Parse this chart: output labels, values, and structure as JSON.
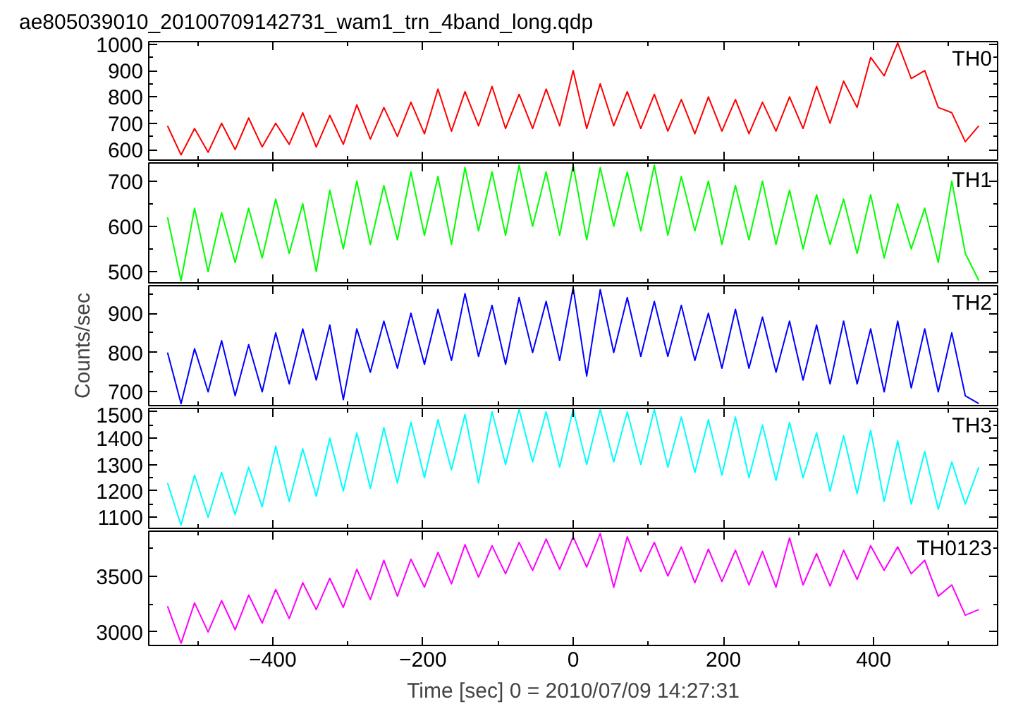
{
  "chart_data": [
    {
      "type": "line",
      "title": "ae805039010_20100709142731_wam1_trn_4band_long.qdp",
      "x": [
        -540,
        -522,
        -504,
        -486,
        -468,
        -450,
        -432,
        -414,
        -396,
        -378,
        -360,
        -342,
        -324,
        -306,
        -288,
        -270,
        -252,
        -234,
        -216,
        -198,
        -180,
        -162,
        -144,
        -126,
        -108,
        -90,
        -72,
        -54,
        -36,
        -18,
        0,
        18,
        36,
        54,
        72,
        90,
        108,
        126,
        144,
        162,
        180,
        198,
        216,
        234,
        252,
        270,
        288,
        306,
        324,
        342,
        360,
        378,
        396,
        414,
        432,
        450,
        468,
        486,
        504,
        522,
        540
      ],
      "xlim": [
        -565,
        565
      ],
      "xticks": [
        -400,
        -200,
        0,
        200,
        400
      ],
      "ylim": [
        560,
        1010
      ],
      "yticks": [
        600,
        700,
        800,
        900,
        1000
      ],
      "tick_labels": "y",
      "series": [
        {
          "name": "TH0",
          "color": "#ff0000",
          "values": [
            690,
            580,
            680,
            590,
            700,
            600,
            720,
            610,
            700,
            620,
            740,
            610,
            730,
            620,
            770,
            640,
            760,
            650,
            780,
            660,
            830,
            670,
            820,
            690,
            840,
            680,
            810,
            680,
            830,
            690,
            900,
            680,
            850,
            690,
            820,
            680,
            810,
            670,
            790,
            660,
            800,
            670,
            790,
            660,
            780,
            670,
            800,
            680,
            840,
            700,
            860,
            760,
            950,
            880,
            1005,
            870,
            900,
            760,
            740,
            630,
            690
          ]
        }
      ]
    },
    {
      "type": "line",
      "x": [
        -540,
        -522,
        -504,
        -486,
        -468,
        -450,
        -432,
        -414,
        -396,
        -378,
        -360,
        -342,
        -324,
        -306,
        -288,
        -270,
        -252,
        -234,
        -216,
        -198,
        -180,
        -162,
        -144,
        -126,
        -108,
        -90,
        -72,
        -54,
        -36,
        -18,
        0,
        18,
        36,
        54,
        72,
        90,
        108,
        126,
        144,
        162,
        180,
        198,
        216,
        234,
        252,
        270,
        288,
        306,
        324,
        342,
        360,
        378,
        396,
        414,
        432,
        450,
        468,
        486,
        504,
        522,
        540
      ],
      "xlim": [
        -565,
        565
      ],
      "xticks": [
        -400,
        -200,
        0,
        200,
        400
      ],
      "ylim": [
        475,
        740
      ],
      "yticks": [
        500,
        600,
        700
      ],
      "tick_labels": "y",
      "series": [
        {
          "name": "TH1",
          "color": "#00ff00",
          "values": [
            620,
            480,
            640,
            500,
            630,
            520,
            640,
            530,
            660,
            540,
            650,
            500,
            680,
            550,
            700,
            560,
            690,
            570,
            720,
            580,
            710,
            560,
            730,
            590,
            720,
            580,
            735,
            600,
            720,
            580,
            735,
            570,
            730,
            600,
            720,
            590,
            735,
            580,
            710,
            590,
            700,
            560,
            690,
            570,
            700,
            560,
            680,
            550,
            670,
            560,
            660,
            540,
            670,
            530,
            650,
            550,
            640,
            520,
            700,
            540,
            480
          ]
        }
      ]
    },
    {
      "type": "line",
      "ylabel": "Counts/sec",
      "x": [
        -540,
        -522,
        -504,
        -486,
        -468,
        -450,
        -432,
        -414,
        -396,
        -378,
        -360,
        -342,
        -324,
        -306,
        -288,
        -270,
        -252,
        -234,
        -216,
        -198,
        -180,
        -162,
        -144,
        -126,
        -108,
        -90,
        -72,
        -54,
        -36,
        -18,
        0,
        18,
        36,
        54,
        72,
        90,
        108,
        126,
        144,
        162,
        180,
        198,
        216,
        234,
        252,
        270,
        288,
        306,
        324,
        342,
        360,
        378,
        396,
        414,
        432,
        450,
        468,
        486,
        504,
        522,
        540
      ],
      "xlim": [
        -565,
        565
      ],
      "xticks": [
        -400,
        -200,
        0,
        200,
        400
      ],
      "ylim": [
        665,
        970
      ],
      "yticks": [
        700,
        800,
        900
      ],
      "tick_labels": "y",
      "series": [
        {
          "name": "TH2",
          "color": "#0000ff",
          "values": [
            800,
            670,
            810,
            700,
            830,
            690,
            820,
            700,
            850,
            720,
            860,
            730,
            870,
            680,
            860,
            750,
            880,
            760,
            900,
            770,
            910,
            780,
            950,
            790,
            920,
            770,
            940,
            800,
            930,
            780,
            965,
            740,
            960,
            800,
            940,
            790,
            930,
            790,
            920,
            780,
            900,
            760,
            910,
            760,
            890,
            750,
            880,
            730,
            870,
            720,
            880,
            720,
            860,
            700,
            880,
            710,
            860,
            700,
            850,
            690,
            670
          ]
        }
      ]
    },
    {
      "type": "line",
      "x": [
        -540,
        -522,
        -504,
        -486,
        -468,
        -450,
        -432,
        -414,
        -396,
        -378,
        -360,
        -342,
        -324,
        -306,
        -288,
        -270,
        -252,
        -234,
        -216,
        -198,
        -180,
        -162,
        -144,
        -126,
        -108,
        -90,
        -72,
        -54,
        -36,
        -18,
        0,
        18,
        36,
        54,
        72,
        90,
        108,
        126,
        144,
        162,
        180,
        198,
        216,
        234,
        252,
        270,
        288,
        306,
        324,
        342,
        360,
        378,
        396,
        414,
        432,
        450,
        468,
        486,
        504,
        522,
        540
      ],
      "xlim": [
        -565,
        565
      ],
      "xticks": [
        -400,
        -200,
        0,
        200,
        400
      ],
      "ylim": [
        1058,
        1513
      ],
      "yticks": [
        1100,
        1200,
        1300,
        1400,
        1500
      ],
      "tick_labels": "y",
      "series": [
        {
          "name": "TH3",
          "color": "#00ffff",
          "values": [
            1230,
            1070,
            1260,
            1100,
            1270,
            1110,
            1290,
            1140,
            1370,
            1160,
            1360,
            1180,
            1400,
            1200,
            1420,
            1210,
            1440,
            1230,
            1460,
            1250,
            1470,
            1280,
            1490,
            1230,
            1500,
            1300,
            1510,
            1310,
            1500,
            1290,
            1510,
            1300,
            1510,
            1310,
            1500,
            1300,
            1510,
            1290,
            1480,
            1270,
            1470,
            1260,
            1480,
            1250,
            1450,
            1240,
            1460,
            1250,
            1420,
            1200,
            1410,
            1190,
            1430,
            1160,
            1390,
            1150,
            1350,
            1130,
            1310,
            1150,
            1290
          ]
        }
      ]
    },
    {
      "type": "line",
      "xlabel": "Time [sec] 0 = 2010/07/09 14:27:31",
      "x": [
        -540,
        -522,
        -504,
        -486,
        -468,
        -450,
        -432,
        -414,
        -396,
        -378,
        -360,
        -342,
        -324,
        -306,
        -288,
        -270,
        -252,
        -234,
        -216,
        -198,
        -180,
        -162,
        -144,
        -126,
        -108,
        -90,
        -72,
        -54,
        -36,
        -18,
        0,
        18,
        36,
        54,
        72,
        90,
        108,
        126,
        144,
        162,
        180,
        198,
        216,
        234,
        252,
        270,
        288,
        306,
        324,
        342,
        360,
        378,
        396,
        414,
        432,
        450,
        468,
        486,
        504,
        522,
        540
      ],
      "xlim": [
        -565,
        565
      ],
      "xticks": [
        -400,
        -200,
        0,
        200,
        400
      ],
      "ylim": [
        2880,
        3900
      ],
      "yticks": [
        3000,
        3500
      ],
      "series": [
        {
          "name": "TH0123",
          "color": "#ff00ff",
          "values": [
            3230,
            2900,
            3260,
            3000,
            3280,
            3020,
            3330,
            3080,
            3380,
            3120,
            3440,
            3200,
            3480,
            3220,
            3560,
            3290,
            3640,
            3320,
            3650,
            3400,
            3710,
            3430,
            3780,
            3490,
            3770,
            3520,
            3800,
            3550,
            3830,
            3560,
            3850,
            3580,
            3880,
            3400,
            3850,
            3540,
            3800,
            3500,
            3760,
            3440,
            3740,
            3450,
            3730,
            3420,
            3720,
            3400,
            3840,
            3420,
            3700,
            3410,
            3730,
            3470,
            3770,
            3550,
            3760,
            3520,
            3640,
            3320,
            3420,
            3150,
            3200
          ]
        }
      ]
    }
  ]
}
